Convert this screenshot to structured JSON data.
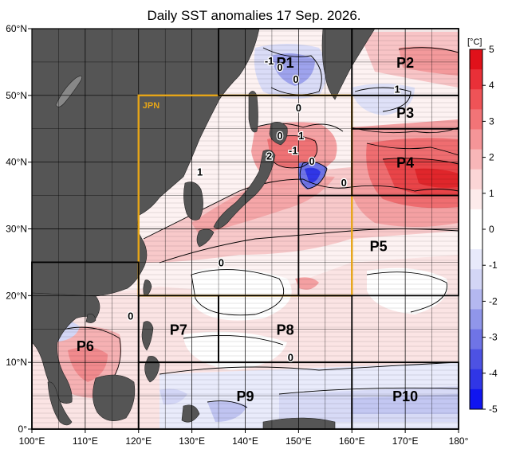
{
  "title": "Daily SST anomalies 17 Sep. 2026.",
  "colorbar": {
    "unit_label": "[°C]",
    "tick_labels": [
      "5",
      "4",
      "3",
      "2",
      "1",
      "0",
      "-1",
      "-2",
      "-3",
      "-4",
      "-5"
    ],
    "colors": [
      "#e0111a",
      "#e93038",
      "#ef5357",
      "#f27477",
      "#f59598",
      "#f8b6b8",
      "#fbd5d6",
      "#fdebeb",
      "#ffffff",
      "#ffffff",
      "#e8eafb",
      "#d3d6f6",
      "#b4b8f0",
      "#9096ea",
      "#6f74e6",
      "#4d52e3",
      "#3036e6",
      "#1015f0"
    ]
  },
  "axes": {
    "lon_labels": [
      "100°E",
      "110°E",
      "120°E",
      "130°E",
      "140°E",
      "150°E",
      "160°E",
      "170°E",
      "180°"
    ],
    "lat_labels": [
      "0°",
      "10°N",
      "20°N",
      "30°N",
      "40°N",
      "50°N",
      "60°N"
    ]
  },
  "colors": {
    "land": "#555555",
    "jpn_box": "#e6a517",
    "grid": "#000000"
  },
  "regions": [
    {
      "label": "JPN",
      "lon0": 120,
      "lon1": 160,
      "lat0": 20,
      "lat1": 50
    },
    {
      "label": "P1",
      "lon0": 135,
      "lon1": 160,
      "lat0": 50,
      "lat1": 60
    },
    {
      "label": "P2",
      "lon0": 160,
      "lon1": 180,
      "lat0": 50,
      "lat1": 60
    },
    {
      "label": "P3",
      "lon0": 160,
      "lon1": 180,
      "lat0": 45,
      "lat1": 50
    },
    {
      "label": "P4",
      "lon0": 160,
      "lon1": 180,
      "lat0": 35,
      "lat1": 45
    },
    {
      "label": "P5",
      "lon0": 150,
      "lon1": 180,
      "lat0": 20,
      "lat1": 35
    },
    {
      "label": "P6",
      "lon0": 100,
      "lon1": 120,
      "lat0": 0,
      "lat1": 25
    },
    {
      "label": "P7",
      "lon0": 120,
      "lon1": 135,
      "lat0": 10,
      "lat1": 20
    },
    {
      "label": "P8",
      "lon0": 135,
      "lon1": 160,
      "lat0": 10,
      "lat1": 20
    },
    {
      "label": "P9",
      "lon0": 120,
      "lon1": 160,
      "lat0": 0,
      "lat1": 10
    },
    {
      "label": "P10",
      "lon0": 160,
      "lon1": 180,
      "lat0": 0,
      "lat1": 10
    }
  ],
  "contour_labels": [
    {
      "text": "-1",
      "lon": 144.5,
      "lat": 55.2
    },
    {
      "text": "0",
      "lon": 146.5,
      "lat": 54.3
    },
    {
      "text": "0",
      "lon": 149.5,
      "lat": 52.5
    },
    {
      "text": "1",
      "lon": 168.5,
      "lat": 51.0
    },
    {
      "text": "0",
      "lon": 150.0,
      "lat": 48.2
    },
    {
      "text": "0",
      "lon": 146.5,
      "lat": 44.0
    },
    {
      "text": "1",
      "lon": 150.5,
      "lat": 44.0
    },
    {
      "text": "2",
      "lon": 144.5,
      "lat": 41.0
    },
    {
      "text": "-1",
      "lon": 149.0,
      "lat": 41.8
    },
    {
      "text": "0",
      "lon": 152.5,
      "lat": 40.2
    },
    {
      "text": "0",
      "lon": 158.5,
      "lat": 37.0
    },
    {
      "text": "1",
      "lon": 131.5,
      "lat": 38.6
    },
    {
      "text": "0",
      "lon": 135.5,
      "lat": 25.0
    },
    {
      "text": "0",
      "lon": 118.5,
      "lat": 17.0
    },
    {
      "text": "0",
      "lon": 148.5,
      "lat": 10.8
    }
  ]
}
